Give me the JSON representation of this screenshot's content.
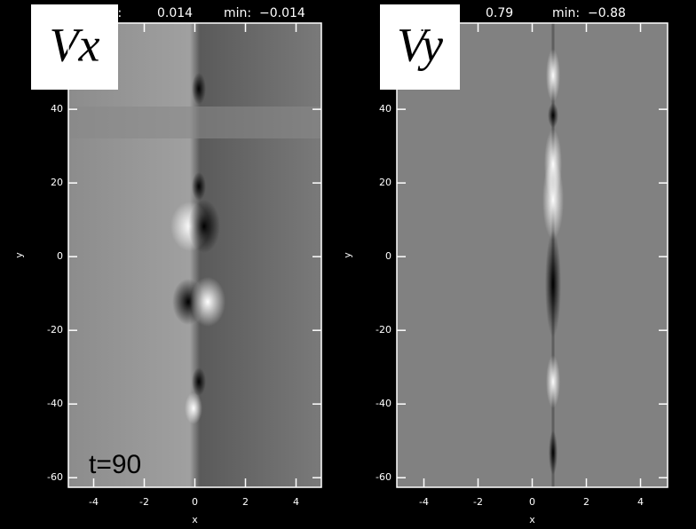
{
  "chart_data": [
    {
      "type": "image",
      "title": "Vx",
      "header": [
        "max:",
        "0.014",
        "min:",
        "−0.014"
      ],
      "annotation": "t=90",
      "x_label": "x",
      "y_label": "y",
      "xlim": [
        -5,
        5
      ],
      "ylim": [
        -62.6,
        63.4
      ],
      "xticks": [
        -4,
        -2,
        0,
        2,
        4
      ],
      "yticks": [
        -60,
        -40,
        -20,
        0,
        20,
        40
      ]
    },
    {
      "type": "image",
      "title": "Vy",
      "header": [
        "max:",
        "0.79",
        "min:",
        "−0.88"
      ],
      "x_label": "x",
      "y_label": "y",
      "xlim": [
        -5,
        5
      ],
      "ylim": [
        -62.6,
        63.4
      ],
      "xticks": [
        -4,
        -2,
        0,
        2,
        4
      ],
      "yticks": [
        -60,
        -40,
        -20,
        0,
        20,
        40
      ]
    }
  ]
}
